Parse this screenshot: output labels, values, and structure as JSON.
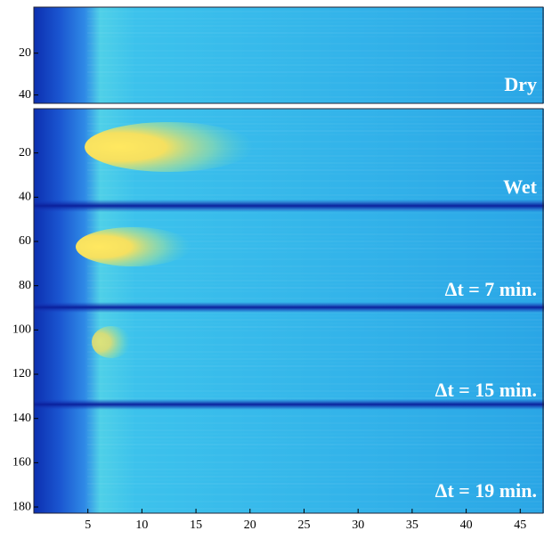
{
  "chart_data": [
    {
      "type": "heatmap",
      "annotations": [
        "Dry"
      ],
      "xlim": [
        0,
        47.2
      ],
      "ylim": [
        -2,
        44
      ],
      "yticks": [
        20,
        40
      ]
    },
    {
      "type": "heatmap",
      "annotations": [
        "Wet",
        "Δt = 7 min.",
        "Δt = 15 min.",
        "Δt = 19 min."
      ],
      "xlim": [
        0,
        47.2
      ],
      "ylim": [
        0,
        182.8
      ],
      "yticks": [
        20,
        40,
        60,
        80,
        100,
        120,
        140,
        160,
        180
      ],
      "xticks": [
        5,
        10,
        15,
        20,
        25,
        30,
        35,
        40,
        45
      ]
    }
  ]
}
